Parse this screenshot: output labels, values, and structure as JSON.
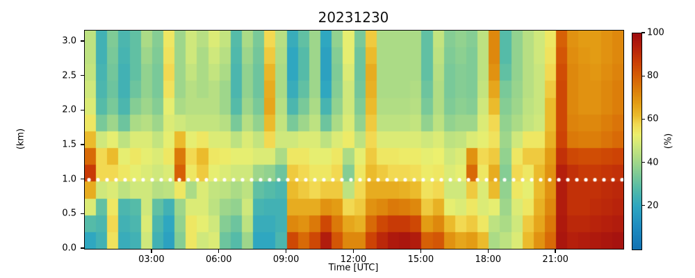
{
  "title": "20231230",
  "chart_data": {
    "type": "heatmap",
    "title": "20231230",
    "xlabel": "Time [UTC]",
    "ylabel": "(km)",
    "colorbar_label": "(%)",
    "x_range_hours": [
      0,
      24
    ],
    "y_range_km": [
      0,
      3.16
    ],
    "grid": false,
    "x_ticks": [
      {
        "hour": 3,
        "label": "03:00"
      },
      {
        "hour": 6,
        "label": "06:00"
      },
      {
        "hour": 9,
        "label": "09:00"
      },
      {
        "hour": 12,
        "label": "12:00"
      },
      {
        "hour": 15,
        "label": "15:00"
      },
      {
        "hour": 18,
        "label": "18:00"
      },
      {
        "hour": 21,
        "label": "21:00"
      }
    ],
    "y_ticks": [
      {
        "km": 0.0,
        "label": "0.0"
      },
      {
        "km": 0.5,
        "label": "0.5"
      },
      {
        "km": 1.0,
        "label": "1.0"
      },
      {
        "km": 1.5,
        "label": "1.5"
      },
      {
        "km": 2.0,
        "label": "2.0"
      },
      {
        "km": 2.5,
        "label": "2.5"
      },
      {
        "km": 3.0,
        "label": "3.0"
      }
    ],
    "colorbar_range": [
      0,
      100
    ],
    "colorbar_ticks": [
      {
        "value": 20,
        "label": "20"
      },
      {
        "value": 40,
        "label": "40"
      },
      {
        "value": 60,
        "label": "60"
      },
      {
        "value": 80,
        "label": "80"
      },
      {
        "value": 100,
        "label": "100"
      }
    ],
    "colormap_anchors": [
      [
        0,
        "#1273b4"
      ],
      [
        10,
        "#1e8bc0"
      ],
      [
        20,
        "#2fa7c0"
      ],
      [
        28,
        "#55bba8"
      ],
      [
        35,
        "#7fcb96"
      ],
      [
        42,
        "#abdb86"
      ],
      [
        48,
        "#cfe87c"
      ],
      [
        53,
        "#ecf06e"
      ],
      [
        58,
        "#f2d952"
      ],
      [
        62,
        "#ebbb2c"
      ],
      [
        68,
        "#e39c14"
      ],
      [
        74,
        "#dc7e0a"
      ],
      [
        80,
        "#d66006"
      ],
      [
        87,
        "#cb3e05"
      ],
      [
        94,
        "#b51f0c"
      ],
      [
        100,
        "#9f0d10"
      ]
    ],
    "annotation_line": {
      "style": "dotted",
      "color": "#ffffff",
      "y_km": 1.0,
      "dot_radius_px": 2.6,
      "dot_spacing_px": 13
    },
    "heights_km_rows_top_to_bottom": [
      3.0,
      2.75,
      2.5,
      2.25,
      2.0,
      1.75,
      1.5,
      1.25,
      1.0,
      0.75,
      0.5,
      0.25,
      0.0
    ],
    "time_hours_columns": [
      0.25,
      0.75,
      1.25,
      1.75,
      2.25,
      2.75,
      3.25,
      3.75,
      4.25,
      4.75,
      5.25,
      5.75,
      6.25,
      6.75,
      7.25,
      7.75,
      8.25,
      8.75,
      9.25,
      9.75,
      10.25,
      10.75,
      11.25,
      11.75,
      12.25,
      12.75,
      13.25,
      13.75,
      14.25,
      14.75,
      15.25,
      15.75,
      16.25,
      16.75,
      17.25,
      17.75,
      18.25,
      18.75,
      19.25,
      19.75,
      20.25,
      20.75,
      21.25,
      21.75,
      22.25,
      22.75,
      23.25,
      23.75
    ],
    "values_percent_columns": [
      [
        45,
        45,
        46,
        48,
        50,
        55,
        62,
        78,
        88,
        65,
        50,
        28,
        20
      ],
      [
        24,
        24,
        25,
        26,
        28,
        34,
        48,
        58,
        58,
        48,
        30,
        26,
        24
      ],
      [
        35,
        34,
        33,
        32,
        34,
        40,
        52,
        62,
        58,
        50,
        55,
        58,
        56
      ],
      [
        26,
        25,
        24,
        24,
        26,
        32,
        45,
        52,
        55,
        45,
        26,
        24,
        22
      ],
      [
        30,
        30,
        30,
        32,
        36,
        42,
        50,
        55,
        52,
        48,
        28,
        26,
        24
      ],
      [
        42,
        40,
        38,
        38,
        40,
        44,
        50,
        52,
        50,
        48,
        48,
        50,
        48
      ],
      [
        36,
        35,
        34,
        34,
        36,
        40,
        46,
        50,
        48,
        44,
        30,
        26,
        24
      ],
      [
        55,
        56,
        58,
        56,
        52,
        50,
        52,
        55,
        50,
        45,
        24,
        20,
        18
      ],
      [
        40,
        40,
        40,
        40,
        42,
        48,
        62,
        75,
        80,
        55,
        40,
        38,
        36
      ],
      [
        48,
        48,
        46,
        44,
        44,
        46,
        52,
        58,
        55,
        42,
        50,
        55,
        55
      ],
      [
        44,
        42,
        42,
        42,
        44,
        46,
        55,
        62,
        60,
        50,
        50,
        52,
        48
      ],
      [
        50,
        48,
        46,
        44,
        44,
        46,
        50,
        55,
        52,
        46,
        45,
        48,
        50
      ],
      [
        46,
        44,
        42,
        40,
        40,
        44,
        50,
        54,
        50,
        45,
        40,
        36,
        32
      ],
      [
        28,
        27,
        26,
        26,
        28,
        34,
        45,
        52,
        48,
        42,
        38,
        32,
        28
      ],
      [
        42,
        40,
        38,
        38,
        40,
        44,
        50,
        52,
        48,
        45,
        48,
        45,
        40
      ],
      [
        34,
        33,
        32,
        32,
        34,
        38,
        46,
        50,
        40,
        30,
        25,
        22,
        20
      ],
      [
        58,
        60,
        63,
        65,
        66,
        62,
        58,
        50,
        38,
        28,
        24,
        22,
        20
      ],
      [
        44,
        43,
        42,
        42,
        44,
        46,
        48,
        42,
        32,
        26,
        24,
        24,
        26
      ],
      [
        22,
        20,
        20,
        22,
        26,
        34,
        48,
        55,
        60,
        62,
        65,
        72,
        85
      ],
      [
        30,
        28,
        28,
        30,
        34,
        40,
        50,
        55,
        58,
        60,
        65,
        70,
        78
      ],
      [
        40,
        40,
        40,
        40,
        42,
        45,
        50,
        52,
        55,
        58,
        65,
        75,
        85
      ],
      [
        20,
        18,
        18,
        20,
        25,
        32,
        45,
        52,
        55,
        60,
        70,
        85,
        95
      ],
      [
        38,
        36,
        35,
        36,
        38,
        42,
        50,
        55,
        58,
        60,
        68,
        75,
        82
      ],
      [
        52,
        52,
        50,
        48,
        48,
        50,
        54,
        42,
        36,
        45,
        58,
        66,
        72
      ],
      [
        34,
        32,
        32,
        33,
        35,
        38,
        45,
        52,
        55,
        58,
        60,
        64,
        72
      ],
      [
        60,
        62,
        65,
        64,
        62,
        60,
        58,
        60,
        62,
        65,
        70,
        78,
        86
      ],
      [
        42,
        42,
        42,
        42,
        43,
        45,
        50,
        55,
        60,
        65,
        72,
        85,
        92
      ],
      [
        42,
        42,
        42,
        42,
        43,
        45,
        50,
        55,
        58,
        65,
        75,
        88,
        96
      ],
      [
        42,
        42,
        42,
        42,
        43,
        45,
        50,
        54,
        58,
        64,
        74,
        88,
        97
      ],
      [
        42,
        42,
        42,
        43,
        44,
        46,
        50,
        54,
        57,
        62,
        72,
        85,
        95
      ],
      [
        30,
        30,
        30,
        32,
        34,
        38,
        48,
        52,
        54,
        56,
        60,
        68,
        80
      ],
      [
        46,
        45,
        44,
        43,
        43,
        45,
        50,
        53,
        55,
        58,
        64,
        72,
        82
      ],
      [
        36,
        35,
        34,
        34,
        35,
        38,
        45,
        48,
        50,
        48,
        52,
        62,
        70
      ],
      [
        38,
        37,
        36,
        36,
        37,
        40,
        46,
        50,
        52,
        48,
        50,
        58,
        66
      ],
      [
        36,
        35,
        35,
        35,
        36,
        40,
        50,
        70,
        78,
        60,
        55,
        60,
        68
      ],
      [
        45,
        45,
        45,
        46,
        48,
        50,
        52,
        58,
        55,
        50,
        50,
        55,
        62
      ],
      [
        72,
        72,
        70,
        66,
        62,
        58,
        56,
        60,
        65,
        62,
        52,
        45,
        42
      ],
      [
        28,
        28,
        30,
        34,
        36,
        38,
        40,
        38,
        36,
        38,
        40,
        42,
        45
      ],
      [
        38,
        38,
        38,
        39,
        40,
        42,
        48,
        55,
        58,
        55,
        50,
        48,
        50
      ],
      [
        44,
        44,
        44,
        44,
        45,
        46,
        55,
        60,
        55,
        52,
        55,
        60,
        62
      ],
      [
        48,
        48,
        47,
        47,
        47,
        48,
        55,
        60,
        62,
        62,
        64,
        66,
        70
      ],
      [
        55,
        56,
        58,
        60,
        62,
        62,
        64,
        68,
        70,
        70,
        72,
        75,
        78
      ],
      [
        80,
        82,
        84,
        85,
        85,
        85,
        86,
        90,
        94,
        95,
        95,
        96,
        97
      ],
      [
        70,
        71,
        72,
        72,
        72,
        73,
        75,
        85,
        90,
        90,
        90,
        92,
        94
      ],
      [
        68,
        69,
        70,
        70,
        70,
        72,
        74,
        84,
        88,
        90,
        90,
        92,
        95
      ],
      [
        68,
        68,
        69,
        70,
        70,
        72,
        74,
        84,
        88,
        90,
        91,
        93,
        96
      ],
      [
        70,
        70,
        71,
        72,
        72,
        74,
        76,
        85,
        89,
        91,
        92,
        94,
        97
      ],
      [
        72,
        72,
        73,
        74,
        74,
        76,
        78,
        86,
        90,
        92,
        93,
        95,
        98
      ]
    ]
  }
}
